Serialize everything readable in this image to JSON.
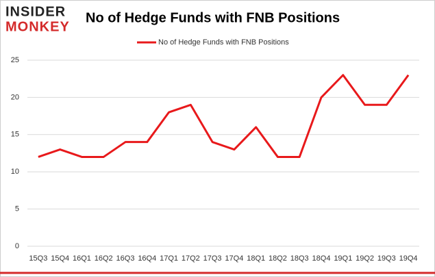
{
  "logo": {
    "line1": "INSIDER",
    "line2": "MONKEY"
  },
  "chart_data": {
    "type": "line",
    "title": "No of Hedge Funds with FNB Positions",
    "categories": [
      "15Q3",
      "15Q4",
      "16Q1",
      "16Q2",
      "16Q3",
      "16Q4",
      "17Q1",
      "17Q2",
      "17Q3",
      "17Q4",
      "18Q1",
      "18Q2",
      "18Q3",
      "18Q4",
      "19Q1",
      "19Q2",
      "19Q3",
      "19Q4"
    ],
    "series": [
      {
        "name": "No of Hedge Funds with FNB Positions",
        "color": "#e8191b",
        "values": [
          12,
          13,
          12,
          12,
          14,
          14,
          18,
          19,
          14,
          13,
          16,
          12,
          12,
          20,
          23,
          19,
          19,
          23
        ]
      }
    ],
    "ylim": [
      0,
      25
    ],
    "yticks": [
      0,
      5,
      10,
      15,
      20,
      25
    ],
    "grid": true,
    "legend": "top"
  }
}
